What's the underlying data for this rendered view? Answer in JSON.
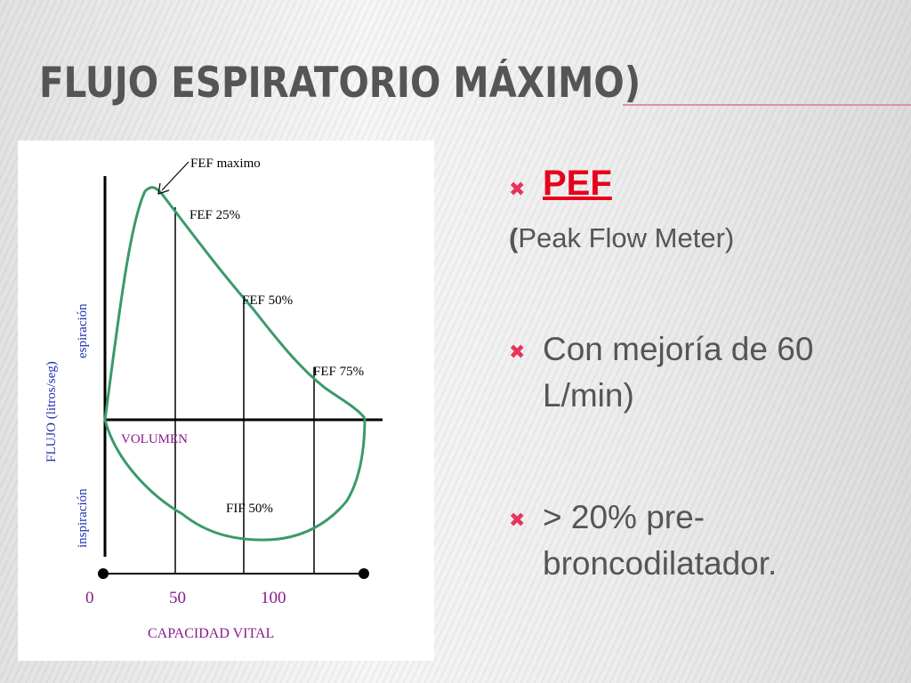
{
  "slide": {
    "title": "Flujo espiratorio máximo)",
    "accent_color": "#e8335b",
    "title_color": "#555555"
  },
  "figure": {
    "labels": {
      "fef_max": "FEF maximo",
      "fef25": "FEF 25%",
      "fef50": "FEF 50%",
      "fef75": "FEF 75%",
      "fif50": "FIF 50%",
      "volumen": "VOLUMEN",
      "y_label": "FLUJO (litros/seg)",
      "espiracion": "espiración",
      "inspiracion": "inspiración",
      "x_label": "CAPACIDAD VITAL"
    },
    "ticks": [
      "0",
      "50",
      "100"
    ],
    "curve_color": "#3a9a6a",
    "label_color": "#2030b0",
    "purple_color": "#8a1a8a"
  },
  "bullets": {
    "marker": "✖",
    "pef_label": "PEF",
    "pef_paren": "(",
    "pef_sub": "Peak Flow Meter)",
    "item2": "Con mejoría de 60 L/min)",
    "item3": "> 20% pre-broncodilatador."
  }
}
